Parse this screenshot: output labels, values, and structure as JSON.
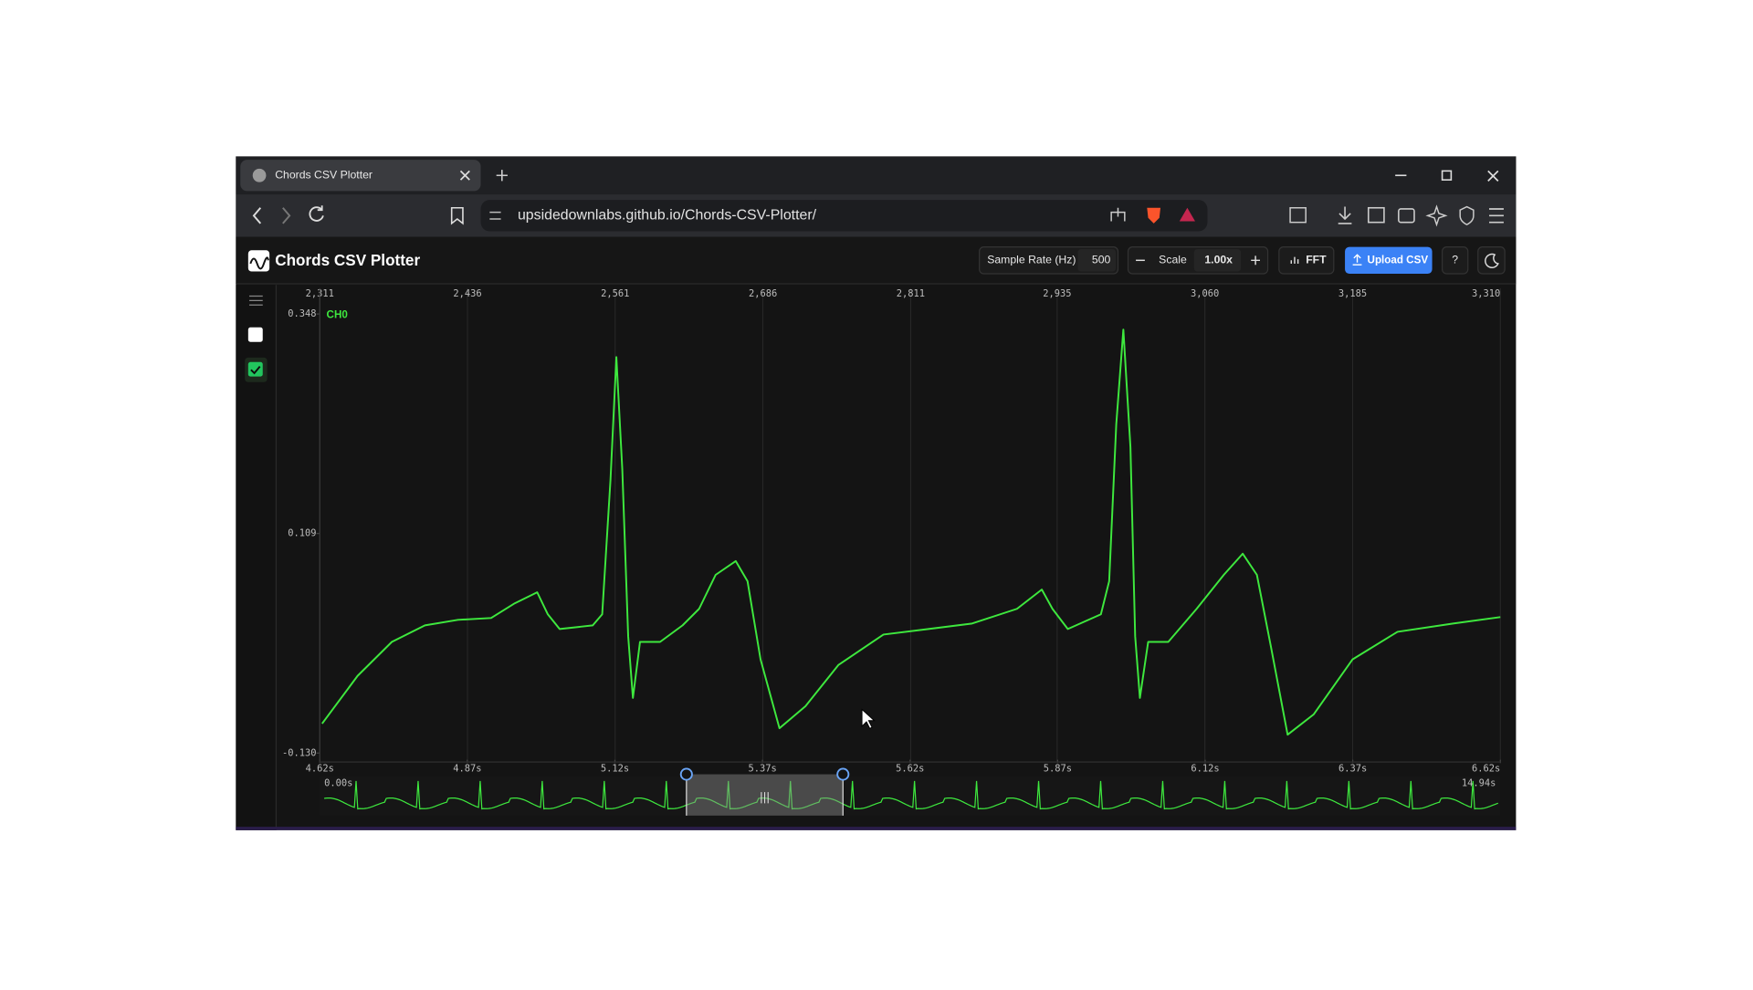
{
  "browser": {
    "tab_title": "Chords CSV Plotter",
    "url": "upsidedownlabs.github.io/Chords-CSV-Plotter/"
  },
  "app": {
    "title": "Chords CSV Plotter",
    "sample_rate_label": "Sample Rate (Hz)",
    "sample_rate": 500,
    "scale_label": "Scale",
    "scale": "1.00x",
    "fft": "FFT",
    "upload": "Upload CSV",
    "help": "?"
  },
  "chart_data": {
    "type": "line",
    "xlim": [
      2311,
      3310
    ],
    "xticks": [
      {
        "value": 2311,
        "label": "2,311"
      },
      {
        "value": 2436,
        "label": "2,436"
      },
      {
        "value": 2561,
        "label": "2,561"
      },
      {
        "value": 2686,
        "label": "2,686"
      },
      {
        "value": 2811,
        "label": "2,811"
      },
      {
        "value": 2935,
        "label": "2,935"
      },
      {
        "value": 3060,
        "label": "3,060"
      },
      {
        "value": 3185,
        "label": "3,185"
      },
      {
        "value": 3310,
        "label": "3,310"
      }
    ],
    "x2lim": [
      4.62,
      6.62
    ],
    "x2ticks": [
      {
        "value": 4.62,
        "label": "4.62s"
      },
      {
        "value": 4.87,
        "label": "4.87s"
      },
      {
        "value": 5.12,
        "label": "5.12s"
      },
      {
        "value": 5.37,
        "label": "5.37s"
      },
      {
        "value": 5.62,
        "label": "5.62s"
      },
      {
        "value": 5.87,
        "label": "5.87s"
      },
      {
        "value": 6.12,
        "label": "6.12s"
      },
      {
        "value": 6.37,
        "label": "6.37s"
      },
      {
        "value": 6.62,
        "label": "6.62s"
      }
    ],
    "ylim": [
      -0.13,
      0.348
    ],
    "yticks": [
      0.348,
      0.109,
      {
        "value": -0.13,
        "label": "-0.130"
      }
    ],
    "grid": true,
    "x": [
      2313,
      2343,
      2372,
      2400,
      2428,
      2456,
      2476,
      2495,
      2504,
      2514,
      2542,
      2550,
      2557,
      2562,
      2567,
      2572,
      2576,
      2582,
      2599,
      2618,
      2632,
      2646,
      2663,
      2673,
      2684,
      2700,
      2722,
      2750,
      2788,
      2826,
      2863,
      2901,
      2922,
      2931,
      2944,
      2972,
      2979,
      2985,
      2991,
      2997,
      3001,
      3005,
      3012,
      3029,
      3053,
      3076,
      3092,
      3104,
      3116,
      3130,
      3152,
      3185,
      3223,
      3270,
      3310
    ],
    "series": [
      {
        "name": "CH0",
        "color": "#3ee83e",
        "values": [
          -0.098,
          -0.046,
          -0.009,
          0.009,
          0.015,
          0.017,
          0.033,
          0.045,
          0.021,
          0.005,
          0.009,
          0.021,
          0.167,
          0.301,
          0.179,
          -0.003,
          -0.07,
          -0.009,
          -0.009,
          0.009,
          0.027,
          0.064,
          0.079,
          0.057,
          -0.028,
          -0.103,
          -0.079,
          -0.034,
          -0.001,
          0.005,
          0.011,
          0.027,
          0.048,
          0.027,
          0.005,
          0.021,
          0.057,
          0.228,
          0.331,
          0.203,
          -0.003,
          -0.07,
          -0.009,
          -0.009,
          0.027,
          0.064,
          0.087,
          0.064,
          -0.015,
          -0.11,
          -0.088,
          -0.028,
          0.002,
          0.011,
          0.018
        ]
      }
    ],
    "overview": {
      "start": "0.00s",
      "end": "14.94s"
    }
  }
}
